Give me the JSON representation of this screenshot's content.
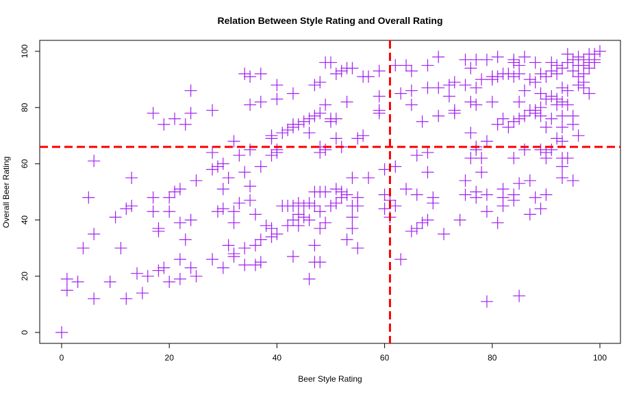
{
  "chart_data": {
    "type": "scatter",
    "title": "Relation Between Style Rating and Overall Rating",
    "xlabel": "Beer Style Rating",
    "ylabel": "Overall Beer Rating",
    "xlim": [
      0,
      100
    ],
    "ylim": [
      0,
      100
    ],
    "xticks": [
      0,
      20,
      40,
      60,
      80,
      100
    ],
    "yticks": [
      0,
      20,
      40,
      60,
      80,
      100
    ],
    "xtick_labels": [
      "0",
      "20",
      "40",
      "60",
      "80",
      "100"
    ],
    "ytick_labels": [
      "0",
      "20",
      "40",
      "60",
      "80",
      "100"
    ],
    "grid": false,
    "legend": "none",
    "point_color": "#a020f0",
    "marker": "plus",
    "reference_lines": {
      "color": "#ff0000",
      "style": "dashed",
      "vertical_x": 61,
      "horizontal_y": 66
    },
    "series": [
      {
        "points": [
          [
            0,
            0
          ],
          [
            1,
            19
          ],
          [
            1,
            15
          ],
          [
            3,
            18
          ],
          [
            4,
            30
          ],
          [
            5,
            48
          ],
          [
            6,
            61
          ],
          [
            6,
            35
          ],
          [
            6,
            12
          ],
          [
            9,
            18
          ],
          [
            10,
            41
          ],
          [
            11,
            30
          ],
          [
            12,
            44
          ],
          [
            12,
            12
          ],
          [
            13,
            55
          ],
          [
            13,
            45
          ],
          [
            14,
            21
          ],
          [
            15,
            14
          ],
          [
            16,
            20
          ],
          [
            17,
            78
          ],
          [
            17,
            48
          ],
          [
            17,
            43
          ],
          [
            18,
            37
          ],
          [
            18,
            36
          ],
          [
            18,
            22
          ],
          [
            19,
            74
          ],
          [
            19,
            23
          ],
          [
            20,
            43
          ],
          [
            20,
            48
          ],
          [
            20,
            18
          ],
          [
            21,
            50
          ],
          [
            21,
            76
          ],
          [
            22,
            51
          ],
          [
            22,
            39
          ],
          [
            22,
            26
          ],
          [
            22,
            19
          ],
          [
            23,
            74
          ],
          [
            23,
            33
          ],
          [
            24,
            86
          ],
          [
            24,
            78
          ],
          [
            24,
            40
          ],
          [
            24,
            23
          ],
          [
            25,
            54
          ],
          [
            25,
            20
          ],
          [
            28,
            79
          ],
          [
            28,
            64
          ],
          [
            28,
            58
          ],
          [
            28,
            26
          ],
          [
            29,
            59
          ],
          [
            29,
            43
          ],
          [
            30,
            60
          ],
          [
            30,
            51
          ],
          [
            30,
            44
          ],
          [
            30,
            23
          ],
          [
            31,
            55
          ],
          [
            31,
            31
          ],
          [
            32,
            68
          ],
          [
            32,
            43
          ],
          [
            32,
            39
          ],
          [
            32,
            28
          ],
          [
            32,
            27
          ],
          [
            33,
            63
          ],
          [
            33,
            46
          ],
          [
            34,
            57
          ],
          [
            34,
            30
          ],
          [
            34,
            24
          ],
          [
            34,
            92
          ],
          [
            35,
            91
          ],
          [
            35,
            81
          ],
          [
            35,
            65
          ],
          [
            35,
            52
          ],
          [
            35,
            47
          ],
          [
            36,
            42
          ],
          [
            36,
            31
          ],
          [
            36,
            24
          ],
          [
            37,
            92
          ],
          [
            37,
            82
          ],
          [
            37,
            59
          ],
          [
            37,
            33
          ],
          [
            37,
            25
          ],
          [
            38,
            38
          ],
          [
            39,
            70
          ],
          [
            39,
            69
          ],
          [
            39,
            63
          ],
          [
            39,
            37
          ],
          [
            39,
            34
          ],
          [
            40,
            88
          ],
          [
            40,
            83
          ],
          [
            40,
            65
          ],
          [
            40,
            64
          ],
          [
            40,
            35
          ],
          [
            41,
            71
          ],
          [
            41,
            45
          ],
          [
            42,
            72
          ],
          [
            42,
            45
          ],
          [
            42,
            38
          ],
          [
            43,
            85
          ],
          [
            43,
            74
          ],
          [
            43,
            73
          ],
          [
            43,
            45
          ],
          [
            43,
            40
          ],
          [
            43,
            27
          ],
          [
            44,
            74
          ],
          [
            44,
            46
          ],
          [
            44,
            42
          ],
          [
            44,
            38
          ],
          [
            45,
            75
          ],
          [
            45,
            45
          ],
          [
            45,
            41
          ],
          [
            46,
            76
          ],
          [
            46,
            71
          ],
          [
            46,
            46
          ],
          [
            46,
            40
          ],
          [
            46,
            19
          ],
          [
            47,
            88
          ],
          [
            47,
            77
          ],
          [
            47,
            50
          ],
          [
            47,
            45
          ],
          [
            47,
            25
          ],
          [
            47,
            31
          ],
          [
            48,
            89
          ],
          [
            48,
            78
          ],
          [
            48,
            66
          ],
          [
            48,
            64
          ],
          [
            48,
            50
          ],
          [
            48,
            43
          ],
          [
            48,
            37
          ],
          [
            48,
            25
          ],
          [
            49,
            96
          ],
          [
            49,
            81
          ],
          [
            49,
            65
          ],
          [
            49,
            50
          ],
          [
            49,
            39
          ],
          [
            50,
            96
          ],
          [
            50,
            76
          ],
          [
            50,
            75
          ],
          [
            50,
            45
          ],
          [
            51,
            92
          ],
          [
            51,
            76
          ],
          [
            51,
            69
          ],
          [
            51,
            51
          ],
          [
            51,
            46
          ],
          [
            52,
            93
          ],
          [
            52,
            66
          ],
          [
            52,
            50
          ],
          [
            52,
            48
          ],
          [
            53,
            94
          ],
          [
            53,
            82
          ],
          [
            53,
            49
          ],
          [
            53,
            33
          ],
          [
            54,
            94
          ],
          [
            54,
            55
          ],
          [
            54,
            45
          ],
          [
            54,
            41
          ],
          [
            54,
            37
          ],
          [
            55,
            69
          ],
          [
            55,
            48
          ],
          [
            55,
            45
          ],
          [
            55,
            30
          ],
          [
            56,
            91
          ],
          [
            56,
            70
          ],
          [
            57,
            91
          ],
          [
            57,
            55
          ],
          [
            59,
            93
          ],
          [
            59,
            84
          ],
          [
            59,
            79
          ],
          [
            59,
            78
          ],
          [
            60,
            58
          ],
          [
            60,
            49
          ],
          [
            60,
            44
          ],
          [
            61,
            47
          ],
          [
            61,
            41
          ],
          [
            62,
            95
          ],
          [
            62,
            59
          ],
          [
            62,
            45
          ],
          [
            63,
            85
          ],
          [
            63,
            26
          ],
          [
            64,
            95
          ],
          [
            64,
            51
          ],
          [
            65,
            93
          ],
          [
            65,
            86
          ],
          [
            65,
            81
          ],
          [
            65,
            36
          ],
          [
            66,
            63
          ],
          [
            66,
            49
          ],
          [
            66,
            37
          ],
          [
            67,
            75
          ],
          [
            67,
            39
          ],
          [
            68,
            95
          ],
          [
            68,
            87
          ],
          [
            68,
            64
          ],
          [
            68,
            57
          ],
          [
            68,
            40
          ],
          [
            69,
            48
          ],
          [
            69,
            46
          ],
          [
            70,
            98
          ],
          [
            70,
            87
          ],
          [
            70,
            77
          ],
          [
            71,
            35
          ],
          [
            72,
            88
          ],
          [
            72,
            84
          ],
          [
            73,
            89
          ],
          [
            73,
            79
          ],
          [
            73,
            78
          ],
          [
            74,
            40
          ],
          [
            75,
            97
          ],
          [
            75,
            88
          ],
          [
            75,
            54
          ],
          [
            75,
            49
          ],
          [
            76,
            94
          ],
          [
            76,
            82
          ],
          [
            76,
            71
          ],
          [
            76,
            62
          ],
          [
            77,
            97
          ],
          [
            77,
            87
          ],
          [
            77,
            81
          ],
          [
            77,
            66
          ],
          [
            77,
            65
          ],
          [
            77,
            50
          ],
          [
            77,
            48
          ],
          [
            78,
            90
          ],
          [
            78,
            62
          ],
          [
            78,
            57
          ],
          [
            79,
            97
          ],
          [
            79,
            68
          ],
          [
            79,
            49
          ],
          [
            79,
            43
          ],
          [
            79,
            11
          ],
          [
            80,
            91
          ],
          [
            80,
            90
          ],
          [
            80,
            82
          ],
          [
            81,
            98
          ],
          [
            81,
            91
          ],
          [
            81,
            74
          ],
          [
            81,
            39
          ],
          [
            82,
            92
          ],
          [
            82,
            76
          ],
          [
            82,
            51
          ],
          [
            82,
            48
          ],
          [
            82,
            45
          ],
          [
            83,
            92
          ],
          [
            83,
            73
          ],
          [
            84,
            97
          ],
          [
            84,
            96
          ],
          [
            84,
            91
          ],
          [
            84,
            75
          ],
          [
            84,
            62
          ],
          [
            84,
            49
          ],
          [
            84,
            47
          ],
          [
            85,
            95
          ],
          [
            85,
            92
          ],
          [
            85,
            82
          ],
          [
            85,
            76
          ],
          [
            85,
            53
          ],
          [
            85,
            13
          ],
          [
            86,
            98
          ],
          [
            86,
            86
          ],
          [
            86,
            77
          ],
          [
            86,
            65
          ],
          [
            87,
            90
          ],
          [
            87,
            79
          ],
          [
            87,
            54
          ],
          [
            87,
            42
          ],
          [
            88,
            96
          ],
          [
            88,
            89
          ],
          [
            88,
            79
          ],
          [
            88,
            78
          ],
          [
            88,
            48
          ],
          [
            89,
            92
          ],
          [
            89,
            85
          ],
          [
            89,
            80
          ],
          [
            89,
            77
          ],
          [
            89,
            65
          ],
          [
            89,
            44
          ],
          [
            90,
            91
          ],
          [
            90,
            83
          ],
          [
            90,
            73
          ],
          [
            90,
            64
          ],
          [
            90,
            62
          ],
          [
            90,
            49
          ],
          [
            91,
            96
          ],
          [
            91,
            93
          ],
          [
            91,
            84
          ],
          [
            91,
            76
          ],
          [
            91,
            65
          ],
          [
            92,
            95
          ],
          [
            92,
            92
          ],
          [
            92,
            83
          ],
          [
            92,
            81
          ],
          [
            92,
            69
          ],
          [
            93,
            94
          ],
          [
            93,
            87
          ],
          [
            93,
            82
          ],
          [
            93,
            77
          ],
          [
            93,
            73
          ],
          [
            93,
            68
          ],
          [
            93,
            62
          ],
          [
            93,
            59
          ],
          [
            93,
            55
          ],
          [
            94,
            99
          ],
          [
            94,
            96
          ],
          [
            94,
            86
          ],
          [
            94,
            81
          ],
          [
            94,
            62
          ],
          [
            95,
            97
          ],
          [
            95,
            93
          ],
          [
            95,
            77
          ],
          [
            95,
            74
          ],
          [
            95,
            54
          ],
          [
            96,
            98
          ],
          [
            96,
            95
          ],
          [
            96,
            91
          ],
          [
            96,
            88
          ],
          [
            96,
            70
          ],
          [
            97,
            97
          ],
          [
            97,
            95
          ],
          [
            97,
            92
          ],
          [
            97,
            89
          ],
          [
            97,
            87
          ],
          [
            98,
            99
          ],
          [
            98,
            96
          ],
          [
            98,
            94
          ],
          [
            98,
            85
          ],
          [
            99,
            99
          ],
          [
            99,
            97
          ],
          [
            99,
            96
          ],
          [
            100,
            100
          ]
        ]
      }
    ]
  }
}
